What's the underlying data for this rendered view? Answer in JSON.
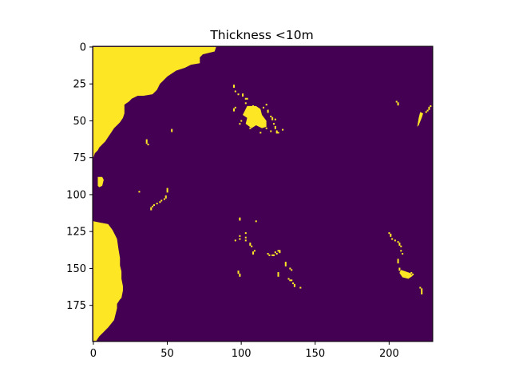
{
  "chart_data": {
    "type": "heatmap",
    "title": "Thickness <10m",
    "xlabel": "",
    "ylabel": "",
    "xlim": [
      -0.5,
      229.5
    ],
    "ylim": [
      199.5,
      -0.5
    ],
    "x_ticks": [
      0,
      50,
      100,
      150,
      200
    ],
    "y_ticks": [
      0,
      25,
      50,
      75,
      100,
      125,
      150,
      175
    ],
    "colormap": "viridis",
    "colors": {
      "low": "#440154",
      "high": "#fde725"
    },
    "grid": false,
    "legend": "none",
    "value_range": [
      0,
      1
    ],
    "high_value_regions": [
      {
        "name": "northwest-landmass",
        "polygon_rows_cols": [
          [
            0,
            0
          ],
          [
            0,
            83
          ],
          [
            3,
            82
          ],
          [
            5,
            74
          ],
          [
            7,
            72
          ],
          [
            11,
            72
          ],
          [
            12,
            66
          ],
          [
            14,
            62
          ],
          [
            16,
            56
          ],
          [
            20,
            50
          ],
          [
            23,
            47
          ],
          [
            25,
            45
          ],
          [
            29,
            43
          ],
          [
            32,
            40
          ],
          [
            33,
            34
          ],
          [
            33,
            30
          ],
          [
            35,
            26
          ],
          [
            37,
            24
          ],
          [
            39,
            21
          ],
          [
            45,
            21
          ],
          [
            48,
            20
          ],
          [
            51,
            18
          ],
          [
            53,
            16
          ],
          [
            55,
            14
          ],
          [
            58,
            12
          ],
          [
            61,
            10
          ],
          [
            64,
            8
          ],
          [
            66,
            6
          ],
          [
            68,
            4
          ],
          [
            70,
            3
          ],
          [
            72,
            1
          ],
          [
            75,
            0
          ]
        ]
      },
      {
        "name": "southwest-landmass",
        "polygon_rows_cols": [
          [
            103,
            0
          ],
          [
            118,
            0
          ],
          [
            120,
            10
          ],
          [
            124,
            13
          ],
          [
            130,
            16
          ],
          [
            137,
            17
          ],
          [
            143,
            18
          ],
          [
            148,
            18
          ],
          [
            152,
            19
          ],
          [
            157,
            19
          ],
          [
            162,
            20
          ],
          [
            165,
            20
          ],
          [
            170,
            19
          ],
          [
            171,
            18
          ],
          [
            174,
            16
          ],
          [
            177,
            16
          ],
          [
            181,
            15
          ],
          [
            185,
            14
          ],
          [
            190,
            10
          ],
          [
            194,
            6
          ],
          [
            196,
            4
          ],
          [
            199,
            2
          ],
          [
            199,
            0
          ]
        ]
      },
      {
        "name": "west-coast-patch",
        "polygon_rows_cols": [
          [
            88,
            3
          ],
          [
            88,
            6
          ],
          [
            90,
            7
          ],
          [
            94,
            6
          ],
          [
            95,
            4
          ],
          [
            94,
            3
          ]
        ]
      },
      {
        "name": "nw-island-cluster",
        "polygon_rows_cols": [
          [
            40,
            104
          ],
          [
            44,
            102
          ],
          [
            46,
            101
          ],
          [
            48,
            104
          ],
          [
            52,
            103
          ],
          [
            55,
            107
          ],
          [
            53,
            110
          ],
          [
            55,
            114
          ],
          [
            54,
            117
          ],
          [
            50,
            117
          ],
          [
            46,
            114
          ],
          [
            42,
            113
          ],
          [
            40,
            110
          ]
        ]
      },
      {
        "name": "ne-island",
        "polygon_rows_cols": [
          [
            44,
            221
          ],
          [
            48,
            220
          ],
          [
            54,
            219
          ],
          [
            55,
            218
          ],
          [
            53,
            220
          ],
          [
            48,
            222
          ],
          [
            45,
            223
          ]
        ]
      },
      {
        "name": "se-island",
        "polygon_rows_cols": [
          [
            151,
            208
          ],
          [
            153,
            207
          ],
          [
            156,
            209
          ],
          [
            157,
            213
          ],
          [
            155,
            216
          ],
          [
            153,
            214
          ]
        ]
      }
    ],
    "high_value_cells_rows_cols": [
      [
        32,
        101
      ],
      [
        33,
        101
      ],
      [
        35,
        103
      ],
      [
        35,
        104
      ],
      [
        38,
        103
      ],
      [
        40,
        108
      ],
      [
        41,
        109
      ],
      [
        43,
        118
      ],
      [
        44,
        118
      ],
      [
        39,
        117
      ],
      [
        41,
        115
      ],
      [
        47,
        120
      ],
      [
        48,
        121
      ],
      [
        49,
        121
      ],
      [
        49,
        123
      ],
      [
        52,
        122
      ],
      [
        54,
        123
      ],
      [
        55,
        123
      ],
      [
        57,
        124
      ],
      [
        58,
        124
      ],
      [
        58,
        125
      ],
      [
        56,
        128
      ],
      [
        57,
        120
      ],
      [
        55,
        117
      ],
      [
        58,
        113
      ],
      [
        55,
        106
      ],
      [
        52,
        99
      ],
      [
        50,
        100
      ],
      [
        42,
        95
      ],
      [
        43,
        95
      ],
      [
        41,
        96
      ],
      [
        26,
        95
      ],
      [
        27,
        95
      ],
      [
        30,
        96
      ],
      [
        32,
        98
      ],
      [
        56,
        53
      ],
      [
        57,
        53
      ],
      [
        63,
        36
      ],
      [
        64,
        36
      ],
      [
        65,
        36
      ],
      [
        66,
        37
      ],
      [
        96,
        50
      ],
      [
        97,
        50
      ],
      [
        98,
        50
      ],
      [
        101,
        49
      ],
      [
        102,
        49
      ],
      [
        103,
        48
      ],
      [
        104,
        46
      ],
      [
        105,
        45
      ],
      [
        106,
        43
      ],
      [
        107,
        41
      ],
      [
        108,
        40
      ],
      [
        109,
        39
      ],
      [
        110,
        39
      ],
      [
        98,
        31
      ],
      [
        116,
        99
      ],
      [
        117,
        99
      ],
      [
        118,
        110
      ],
      [
        126,
        103
      ],
      [
        128,
        99
      ],
      [
        130,
        99
      ],
      [
        129,
        103
      ],
      [
        131,
        103
      ],
      [
        133,
        106
      ],
      [
        134,
        106
      ],
      [
        135,
        107
      ],
      [
        138,
        109
      ],
      [
        139,
        108
      ],
      [
        140,
        108
      ],
      [
        131,
        96
      ],
      [
        140,
        118
      ],
      [
        141,
        119
      ],
      [
        141,
        121
      ],
      [
        141,
        122
      ],
      [
        139,
        123
      ],
      [
        140,
        124
      ],
      [
        138,
        125
      ],
      [
        139,
        126
      ],
      [
        138,
        126
      ],
      [
        146,
        130
      ],
      [
        147,
        130
      ],
      [
        148,
        130
      ],
      [
        150,
        133
      ],
      [
        151,
        134
      ],
      [
        153,
        125
      ],
      [
        154,
        125
      ],
      [
        155,
        125
      ],
      [
        157,
        132
      ],
      [
        158,
        133
      ],
      [
        158,
        134
      ],
      [
        160,
        135
      ],
      [
        161,
        136
      ],
      [
        162,
        136
      ],
      [
        163,
        140
      ],
      [
        126,
        200
      ],
      [
        127,
        201
      ],
      [
        128,
        201
      ],
      [
        130,
        202
      ],
      [
        131,
        204
      ],
      [
        132,
        206
      ],
      [
        133,
        207
      ],
      [
        134,
        207
      ],
      [
        135,
        208
      ],
      [
        138,
        208
      ],
      [
        140,
        209
      ],
      [
        144,
        206
      ],
      [
        145,
        206
      ],
      [
        146,
        206
      ],
      [
        150,
        207
      ],
      [
        151,
        207
      ],
      [
        153,
        215
      ],
      [
        154,
        216
      ],
      [
        163,
        221
      ],
      [
        164,
        222
      ],
      [
        165,
        222
      ],
      [
        166,
        222
      ],
      [
        167,
        222
      ],
      [
        37,
        205
      ],
      [
        38,
        206
      ],
      [
        39,
        206
      ],
      [
        40,
        228
      ],
      [
        41,
        227
      ],
      [
        42,
        227
      ],
      [
        43,
        226
      ],
      [
        44,
        225
      ],
      [
        152,
        98
      ],
      [
        153,
        98
      ],
      [
        154,
        99
      ],
      [
        155,
        99
      ]
    ]
  }
}
